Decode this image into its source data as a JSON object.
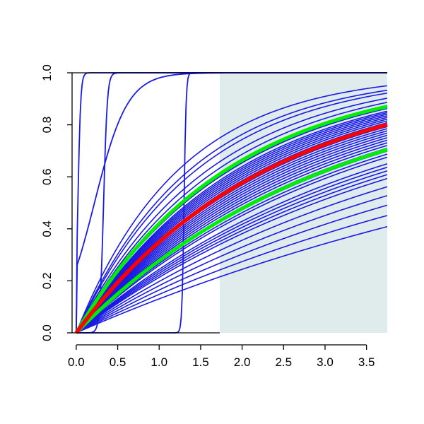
{
  "chart_data": {
    "type": "line",
    "title": "",
    "xlabel": "",
    "ylabel": "",
    "xlim": [
      -0.05,
      3.75
    ],
    "ylim": [
      0,
      1
    ],
    "x_ticks": [
      "0.0",
      "0.5",
      "1.0",
      "1.5",
      "2.0",
      "2.5",
      "3.0",
      "3.5"
    ],
    "y_ticks": [
      "0.0",
      "0.2",
      "0.4",
      "0.6",
      "0.8",
      "1.0"
    ],
    "shaded_region": {
      "x_from": 1.73,
      "x_to": 3.75,
      "color": "#e0ecec"
    },
    "colors": {
      "curves": "#1a1ae6",
      "highlight": "#ff0000",
      "band": "#00ee00"
    },
    "step_curves": [
      {
        "center": 0.02,
        "steepness": 60
      },
      {
        "center": 0.33,
        "steepness": 45
      },
      {
        "center": 0.22,
        "steepness": 5
      },
      {
        "center": 1.3,
        "steepness": 80
      }
    ],
    "saturating_rates": [
      0.8,
      0.72,
      0.68,
      0.62,
      0.58,
      0.55,
      0.53,
      0.51,
      0.5,
      0.49,
      0.48,
      0.47,
      0.46,
      0.45,
      0.44,
      0.43,
      0.42,
      0.41,
      0.4,
      0.39,
      0.38,
      0.37,
      0.36,
      0.35,
      0.34,
      0.33,
      0.32,
      0.31,
      0.3,
      0.28,
      0.27,
      0.26,
      0.25,
      0.24,
      0.22,
      0.2,
      0.18,
      0.16,
      0.14
    ],
    "highlight_rate": 0.43,
    "band_rates": [
      0.545,
      0.325
    ]
  }
}
